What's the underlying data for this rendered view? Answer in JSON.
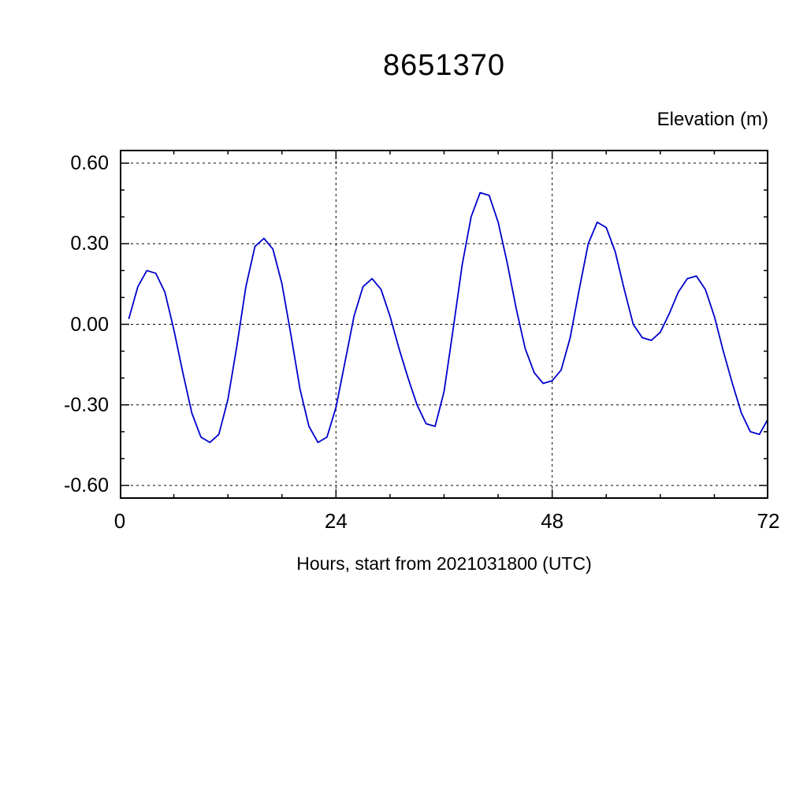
{
  "chart_data": {
    "type": "line",
    "title": "8651370",
    "y_axis_title": "Elevation (m)",
    "x_axis_title": "Hours, start from 2021031800 (UTC)",
    "xlabel": "Hours, start from 2021031800 (UTC)",
    "ylabel": "Elevation (m)",
    "xlim": [
      0,
      72
    ],
    "ylim": [
      -0.65,
      0.65
    ],
    "line_color": "#0000cc",
    "grid_style": "dashed",
    "legend": "none",
    "x_ticks": [
      {
        "value": 0,
        "label": "0"
      },
      {
        "value": 24,
        "label": "24"
      },
      {
        "value": 48,
        "label": "48"
      },
      {
        "value": 72,
        "label": "72"
      }
    ],
    "y_ticks": [
      {
        "value": 0.6,
        "label": "0.60"
      },
      {
        "value": 0.3,
        "label": "0.30"
      },
      {
        "value": 0.0,
        "label": "0.00"
      },
      {
        "value": -0.3,
        "label": "-0.30"
      },
      {
        "value": -0.6,
        "label": "-0.60"
      }
    ],
    "grid_x": [
      24,
      48
    ],
    "grid_y": [
      0.6,
      0.3,
      0.0,
      -0.3,
      -0.6
    ],
    "x_minor_tick_step": 6,
    "y_minor_tick_step": 0.1,
    "x": [
      1,
      2,
      3,
      4,
      5,
      6,
      7,
      8,
      9,
      10,
      11,
      12,
      13,
      14,
      15,
      16,
      17,
      18,
      19,
      20,
      21,
      22,
      23,
      24,
      25,
      26,
      27,
      28,
      29,
      30,
      31,
      32,
      33,
      34,
      35,
      36,
      37,
      38,
      39,
      40,
      41,
      42,
      43,
      44,
      45,
      46,
      47,
      48,
      49,
      50,
      51,
      52,
      53,
      54,
      55,
      56,
      57,
      58,
      59,
      60,
      61,
      62,
      63,
      64,
      65,
      66,
      67,
      68,
      69,
      70,
      71,
      72
    ],
    "values": [
      0.02,
      0.14,
      0.2,
      0.19,
      0.12,
      -0.02,
      -0.18,
      -0.33,
      -0.42,
      -0.44,
      -0.41,
      -0.28,
      -0.08,
      0.14,
      0.29,
      0.32,
      0.28,
      0.15,
      -0.04,
      -0.24,
      -0.38,
      -0.44,
      -0.42,
      -0.31,
      -0.14,
      0.03,
      0.14,
      0.17,
      0.13,
      0.03,
      -0.09,
      -0.2,
      -0.3,
      -0.37,
      -0.38,
      -0.25,
      -0.02,
      0.22,
      0.4,
      0.49,
      0.48,
      0.38,
      0.23,
      0.06,
      -0.09,
      -0.18,
      -0.22,
      -0.21,
      -0.17,
      -0.05,
      0.13,
      0.3,
      0.38,
      0.36,
      0.27,
      0.13,
      0.0,
      -0.05,
      -0.06,
      -0.03,
      0.04,
      0.12,
      0.17,
      0.18,
      0.13,
      0.03,
      -0.1,
      -0.22,
      -0.33,
      -0.4,
      -0.41,
      -0.35
    ]
  }
}
